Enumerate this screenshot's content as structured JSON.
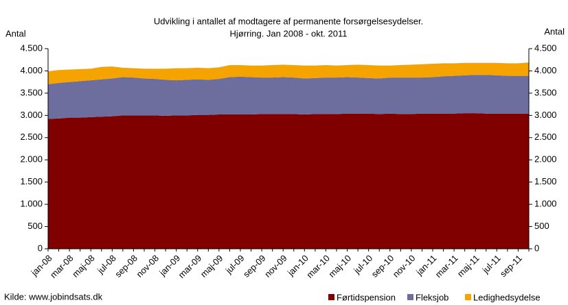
{
  "chart_data": {
    "type": "stacked_area",
    "title": "Udvikling i antallet af modtagere af permanente forsørgelsesydelser.",
    "subtitle": "Hjørring. Jan 2008 - okt. 2011",
    "y_label": "Antal",
    "y2_label": "Antal",
    "source": "Kilde: www.jobindsats.dk",
    "categories": [
      "jan-08",
      null,
      "mar-08",
      null,
      "maj-08",
      null,
      "jul-08",
      null,
      "sep-08",
      null,
      "nov-08",
      null,
      "jan-09",
      null,
      "mar-09",
      null,
      "maj-09",
      null,
      "jul-09",
      null,
      "sep-09",
      null,
      "nov-09",
      null,
      "jan-10",
      null,
      "mar-10",
      null,
      "maj-10",
      null,
      "jul-10",
      null,
      "sep-10",
      null,
      "nov-10",
      null,
      "jan-11",
      null,
      "mar-11",
      null,
      "maj-11",
      null,
      "jul-11",
      null,
      "sep-11",
      null
    ],
    "series": [
      {
        "name": "Førtidspension",
        "color": "#800000",
        "values": [
          2920,
          2930,
          2950,
          2950,
          2960,
          2970,
          2980,
          3000,
          3000,
          3000,
          3000,
          2990,
          3000,
          3000,
          3010,
          3010,
          3020,
          3020,
          3020,
          3020,
          3030,
          3030,
          3030,
          3030,
          3020,
          3030,
          3030,
          3030,
          3040,
          3040,
          3040,
          3030,
          3040,
          3030,
          3030,
          3040,
          3040,
          3040,
          3040,
          3050,
          3050,
          3040,
          3040,
          3040,
          3040,
          3040
        ]
      },
      {
        "name": "Fleksjob",
        "color": "#6e6e9e",
        "values": [
          780,
          800,
          800,
          820,
          830,
          840,
          850,
          860,
          850,
          830,
          820,
          810,
          790,
          800,
          800,
          790,
          800,
          840,
          850,
          840,
          820,
          820,
          830,
          820,
          810,
          810,
          820,
          820,
          820,
          810,
          800,
          800,
          810,
          820,
          820,
          810,
          820,
          840,
          850,
          850,
          860,
          870,
          860,
          850,
          850,
          850
        ]
      },
      {
        "name": "Ledighedsydelse",
        "color": "#f5a300",
        "values": [
          290,
          290,
          280,
          270,
          260,
          280,
          270,
          210,
          210,
          220,
          230,
          250,
          270,
          260,
          260,
          260,
          260,
          270,
          260,
          260,
          270,
          280,
          280,
          280,
          290,
          280,
          280,
          270,
          270,
          290,
          290,
          290,
          270,
          280,
          290,
          300,
          300,
          290,
          280,
          280,
          270,
          270,
          280,
          280,
          280,
          300
        ]
      }
    ],
    "ylim": [
      0,
      4500
    ],
    "yticks": [
      0,
      500,
      {
        "value": 1000,
        "label": "1.000"
      },
      {
        "value": 1500,
        "label": "1.500"
      },
      {
        "value": 2000,
        "label": "2.000"
      },
      {
        "value": 2500,
        "label": "2.500"
      },
      {
        "value": 3000,
        "label": "3.000"
      },
      {
        "value": 3500,
        "label": "3.500"
      },
      {
        "value": 4000,
        "label": "4.000"
      },
      {
        "value": 4500,
        "label": "4.500"
      }
    ],
    "y2lim": [
      0,
      4500
    ],
    "y2ticks": [
      0,
      500,
      {
        "value": 1000,
        "label": "1.000"
      },
      {
        "value": 1500,
        "label": "1.500"
      },
      {
        "value": 2000,
        "label": "2.000"
      },
      {
        "value": 2500,
        "label": "2.500"
      },
      {
        "value": 3000,
        "label": "3.000"
      },
      {
        "value": 3500,
        "label": "3.500"
      },
      {
        "value": 4000,
        "label": "4.000"
      },
      {
        "value": 4500,
        "label": "4.500"
      }
    ],
    "legend": "bottom-right"
  }
}
